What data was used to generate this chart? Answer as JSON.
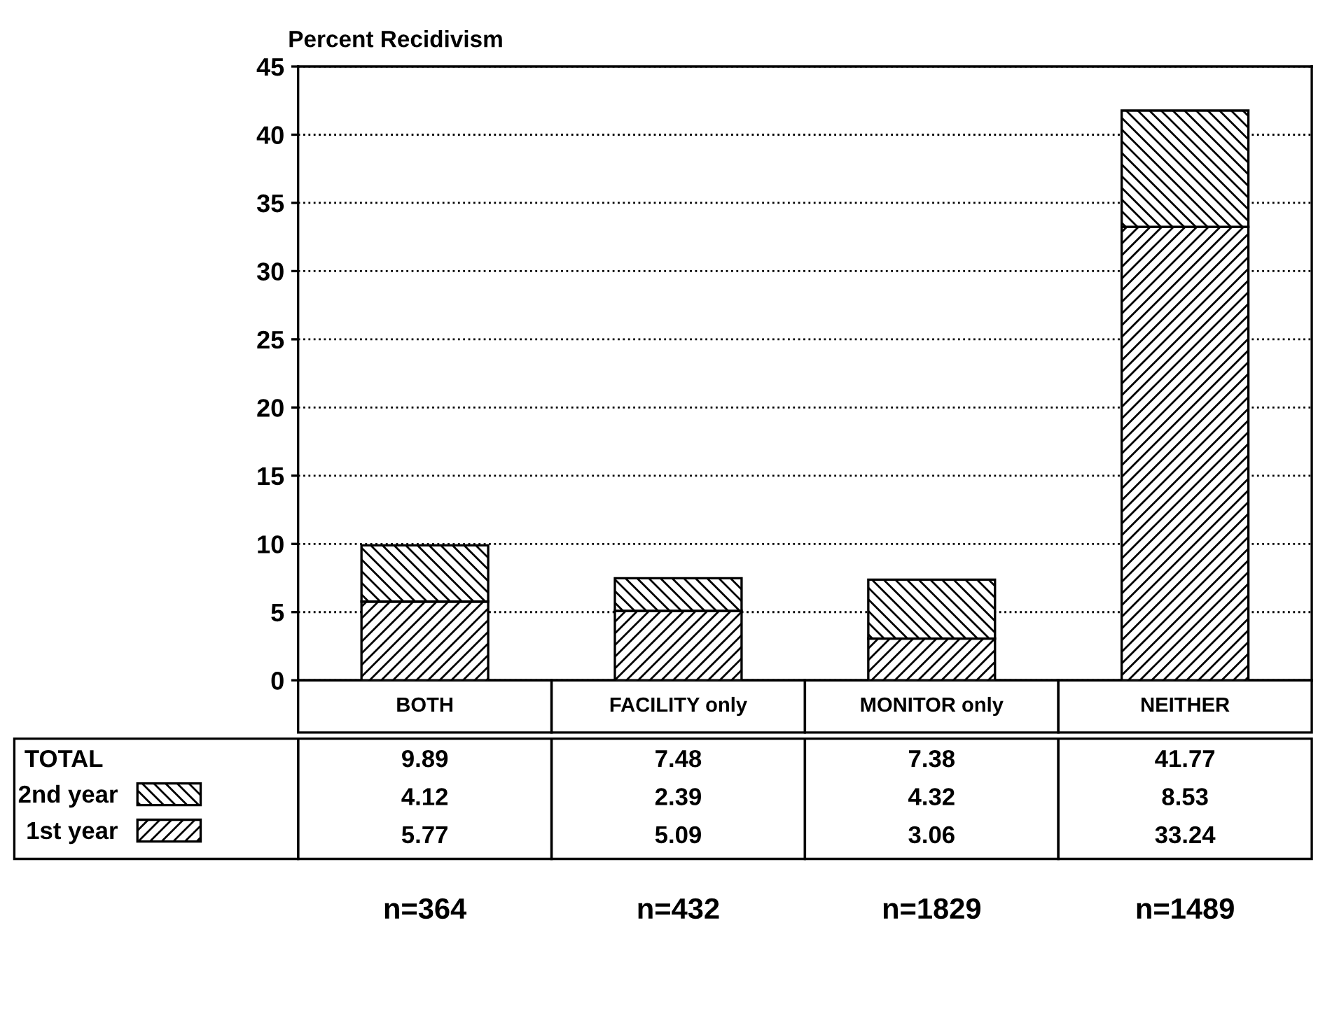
{
  "chart_data": {
    "type": "bar",
    "title": "Percent Recidivism",
    "categories": [
      "BOTH",
      "FACILITY only",
      "MONITOR only",
      "NEITHER"
    ],
    "stacked": true,
    "series": [
      {
        "name": "1st year",
        "color": "#000000",
        "values": [
          5.77,
          5.09,
          3.06,
          33.24
        ]
      },
      {
        "name": "2nd year",
        "color": "#000000",
        "values": [
          4.12,
          2.39,
          4.32,
          8.53
        ]
      }
    ],
    "totals": [
      "9.89",
      "7.48",
      "7.38",
      "41.77"
    ],
    "legend": "bottom left",
    "data_labels": true,
    "ylim": [
      0,
      45
    ],
    "yticks": [
      0,
      5,
      10,
      15,
      20,
      25,
      30,
      35,
      40,
      45
    ],
    "grid": "y",
    "annotations": [
      "TOTAL",
      "n=364",
      "n=432",
      "n=1829",
      "n=1489"
    ]
  }
}
